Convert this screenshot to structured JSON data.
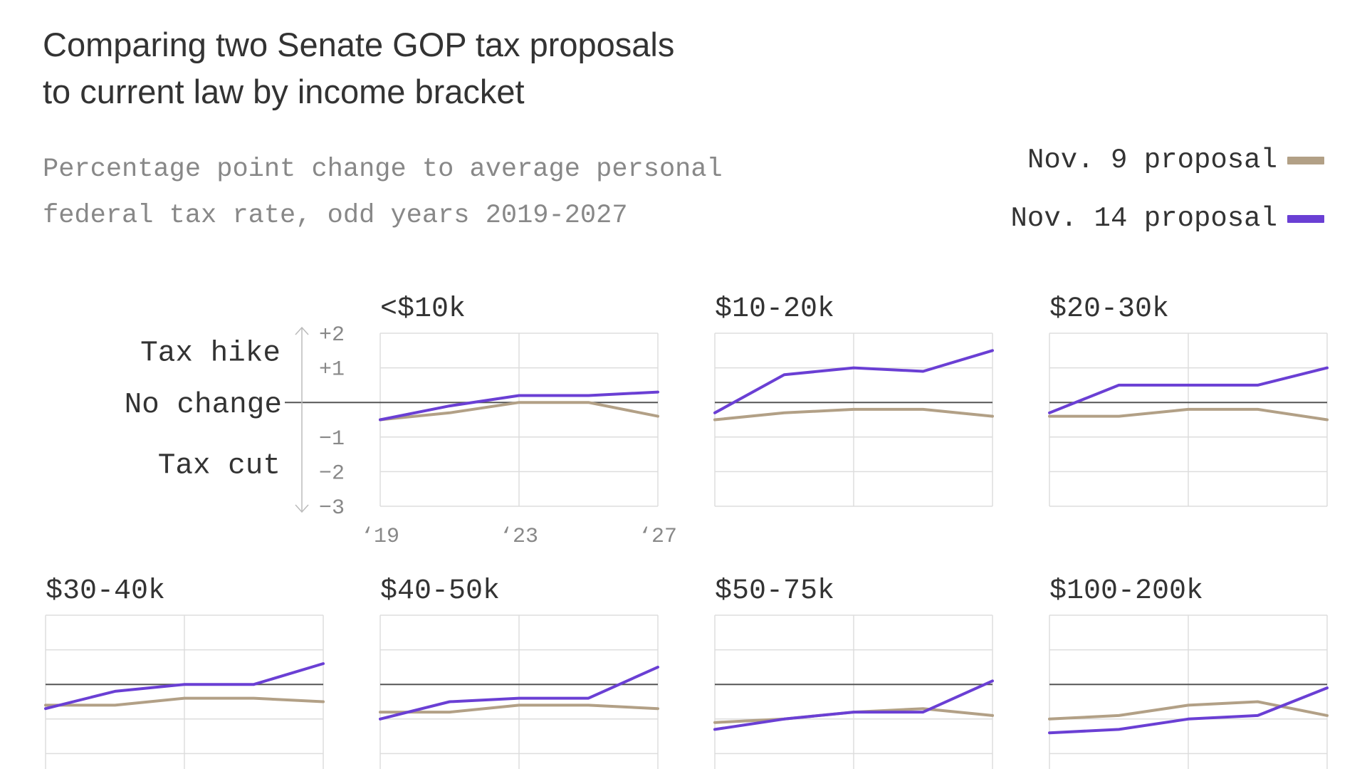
{
  "title_line1": "Comparing two Senate GOP tax proposals",
  "title_line2": "to current law by income bracket",
  "subtitle_line1": "Percentage point change to average personal",
  "subtitle_line2": "federal tax rate, odd years 2019-2027",
  "legend": [
    {
      "label": "Nov. 9 proposal",
      "color": "#b2a086"
    },
    {
      "label": "Nov. 14 proposal",
      "color": "#6a3fd4"
    }
  ],
  "axis_annotations": {
    "tax_hike": "Tax hike",
    "no_change": "No change",
    "tax_cut": "Tax cut"
  },
  "colors": {
    "grid": "#dddddd",
    "zero_line": "#555555",
    "text": "#333333",
    "muted": "#888888"
  },
  "chart_data": {
    "type": "line",
    "x": [
      2019,
      2021,
      2023,
      2025,
      2027
    ],
    "ylim": [
      -3,
      2
    ],
    "yticks": [
      "+2",
      "+1",
      "−1",
      "−2",
      "−3"
    ],
    "ytick_values": [
      2,
      1,
      -1,
      -2,
      -3
    ],
    "xticks": [
      "‘19",
      "‘23",
      "‘27"
    ],
    "xtick_values": [
      2019,
      2023,
      2027
    ],
    "panels": [
      {
        "name": "<$10k",
        "series": [
          {
            "name": "Nov. 9 proposal",
            "values": [
              -0.5,
              -0.3,
              0.0,
              0.0,
              -0.4
            ]
          },
          {
            "name": "Nov. 14 proposal",
            "values": [
              -0.5,
              -0.1,
              0.2,
              0.2,
              0.3
            ]
          }
        ]
      },
      {
        "name": "$10-20k",
        "series": [
          {
            "name": "Nov. 9 proposal",
            "values": [
              -0.5,
              -0.3,
              -0.2,
              -0.2,
              -0.4
            ]
          },
          {
            "name": "Nov. 14 proposal",
            "values": [
              -0.3,
              0.8,
              1.0,
              0.9,
              1.5
            ]
          }
        ]
      },
      {
        "name": "$20-30k",
        "series": [
          {
            "name": "Nov. 9 proposal",
            "values": [
              -0.4,
              -0.4,
              -0.2,
              -0.2,
              -0.5
            ]
          },
          {
            "name": "Nov. 14 proposal",
            "values": [
              -0.3,
              0.5,
              0.5,
              0.5,
              1.0
            ]
          }
        ]
      },
      {
        "name": "$30-40k",
        "series": [
          {
            "name": "Nov. 9 proposal",
            "values": [
              -0.6,
              -0.6,
              -0.4,
              -0.4,
              -0.5
            ]
          },
          {
            "name": "Nov. 14 proposal",
            "values": [
              -0.7,
              -0.2,
              0.0,
              0.0,
              0.6
            ]
          }
        ]
      },
      {
        "name": "$40-50k",
        "series": [
          {
            "name": "Nov. 9 proposal",
            "values": [
              -0.8,
              -0.8,
              -0.6,
              -0.6,
              -0.7
            ]
          },
          {
            "name": "Nov. 14 proposal",
            "values": [
              -1.0,
              -0.5,
              -0.4,
              -0.4,
              0.5
            ]
          }
        ]
      },
      {
        "name": "$50-75k",
        "series": [
          {
            "name": "Nov. 9 proposal",
            "values": [
              -1.1,
              -1.0,
              -0.8,
              -0.7,
              -0.9
            ]
          },
          {
            "name": "Nov. 14 proposal",
            "values": [
              -1.3,
              -1.0,
              -0.8,
              -0.8,
              0.1
            ]
          }
        ]
      },
      {
        "name": "$100-200k",
        "series": [
          {
            "name": "Nov. 9 proposal",
            "values": [
              -1.0,
              -0.9,
              -0.6,
              -0.5,
              -0.9
            ]
          },
          {
            "name": "Nov. 14 proposal",
            "values": [
              -1.4,
              -1.3,
              -1.0,
              -0.9,
              -0.1
            ]
          }
        ]
      }
    ]
  }
}
